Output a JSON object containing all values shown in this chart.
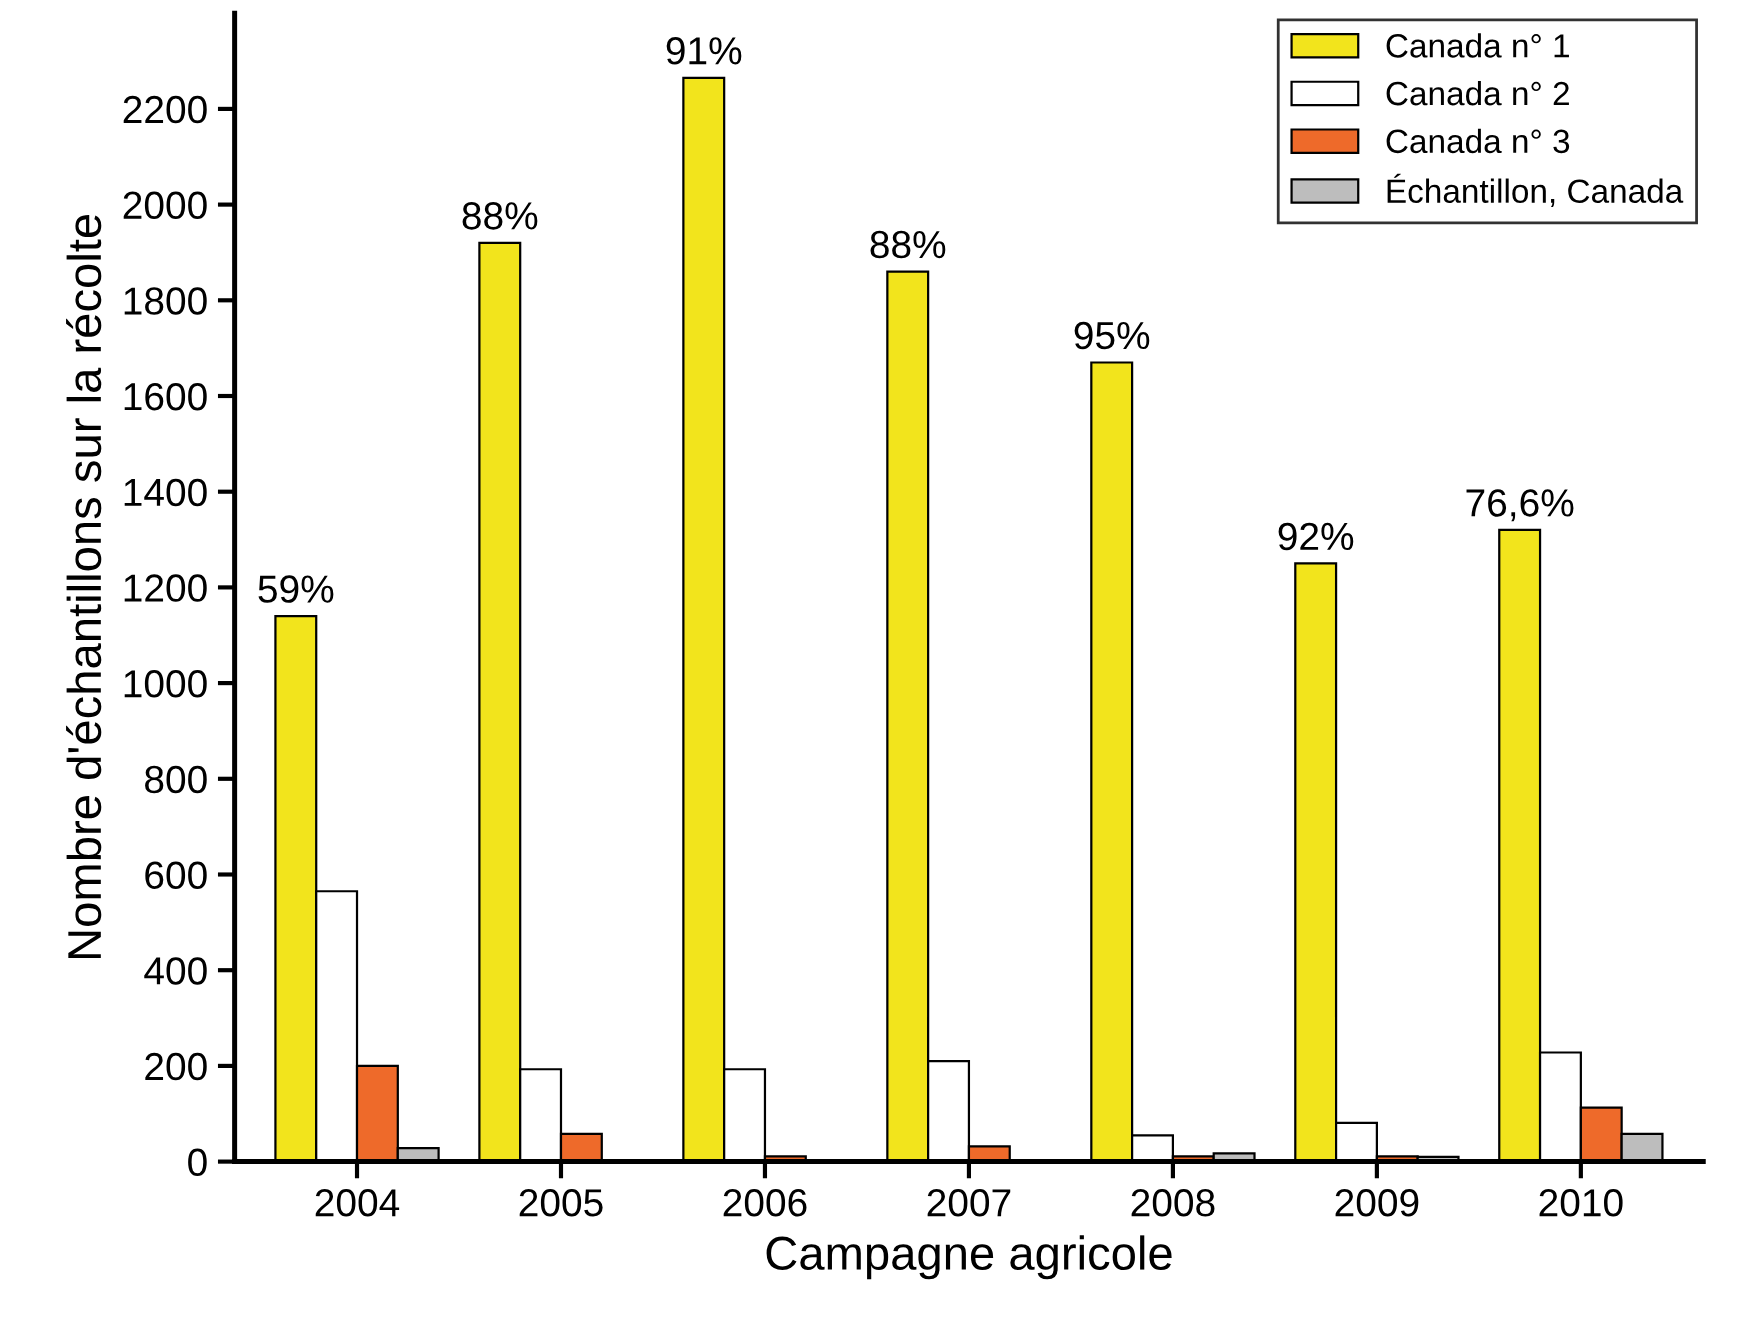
{
  "chart_data": {
    "type": "bar",
    "xlabel": "Campagne agricole",
    "ylabel": "Nombre d'échantillons sur la récolte",
    "categories": [
      "2004",
      "2005",
      "2006",
      "2007",
      "2008",
      "2009",
      "2010"
    ],
    "series": [
      {
        "name": "Canada n° 1",
        "color": "#f2e41c",
        "values": [
          1140,
          1920,
          2265,
          1860,
          1670,
          1250,
          1320
        ]
      },
      {
        "name": "Canada n° 2",
        "color": "#ffffff",
        "values": [
          565,
          193,
          193,
          210,
          55,
          81,
          228
        ]
      },
      {
        "name": "Canada n° 3",
        "color": "#ee6a2a",
        "values": [
          200,
          58,
          11,
          32,
          11,
          11,
          113
        ]
      },
      {
        "name": "Échantillon, Canada",
        "color": "#bdbdbd",
        "values": [
          28,
          null,
          null,
          2,
          17,
          10,
          58
        ]
      }
    ],
    "ylim": [
      0,
      2400
    ],
    "yticks": [
      0,
      200,
      400,
      600,
      800,
      1000,
      1200,
      1400,
      1600,
      1800,
      2000,
      2200
    ],
    "annotations": [
      "59%",
      "88%",
      "91%",
      "88%",
      "95%",
      "92%",
      "76,6%"
    ],
    "legend": "top right",
    "grid": false
  }
}
